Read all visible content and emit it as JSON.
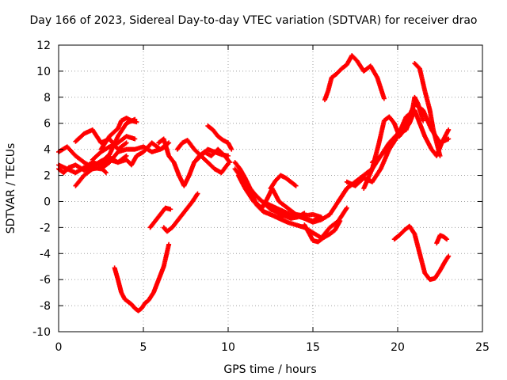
{
  "chart_data": {
    "type": "scatter",
    "title": "Day 166 of 2023, Sidereal Day-to-day VTEC variation (SDTVAR) for receiver drao",
    "xlabel": "GPS time / hours",
    "ylabel": "SDTVAR / TECUs",
    "xlim": [
      0,
      25
    ],
    "ylim": [
      -10,
      12
    ],
    "xticks": [
      0,
      5,
      10,
      15,
      20,
      25
    ],
    "yticks": [
      -10,
      -8,
      -6,
      -4,
      -2,
      0,
      2,
      4,
      6,
      8,
      10,
      12
    ],
    "grid": true,
    "legend": "none",
    "marker": "+",
    "color": "#ff0000",
    "series": [
      {
        "x": [
          0.0,
          0.5,
          1.0,
          1.5,
          2.0,
          2.5,
          3.0,
          3.5,
          4.0,
          4.5,
          5.0,
          5.5,
          6.0,
          6.3
        ],
        "y": [
          3.8,
          4.2,
          3.5,
          3.0,
          2.6,
          2.5,
          3.0,
          3.8,
          4.0,
          4.0,
          4.2,
          3.8,
          4.0,
          4.2
        ]
      },
      {
        "x": [
          0.0,
          0.5,
          1.0,
          1.5,
          2.0,
          2.5,
          3.0,
          3.5,
          4.0
        ],
        "y": [
          2.8,
          2.5,
          2.2,
          2.6,
          3.0,
          2.8,
          3.2,
          3.0,
          3.5
        ]
      },
      {
        "x": [
          0.0,
          0.3,
          0.6,
          1.0,
          1.5,
          2.0,
          2.5,
          3.0,
          3.5,
          4.0,
          4.3,
          4.6,
          5.0,
          5.5,
          6.0,
          6.5
        ],
        "y": [
          2.5,
          2.2,
          2.6,
          2.8,
          2.4,
          2.7,
          3.1,
          3.4,
          3.0,
          3.2,
          2.8,
          3.5,
          3.8,
          4.5,
          4.0,
          4.5
        ]
      },
      {
        "x": [
          1.0,
          1.5,
          2.0,
          2.5,
          2.8
        ],
        "y": [
          1.2,
          2.0,
          2.5,
          2.6,
          2.2
        ]
      },
      {
        "x": [
          1.0,
          1.5,
          2.0,
          2.5,
          3.0,
          3.5,
          4.0
        ],
        "y": [
          4.6,
          5.2,
          5.5,
          4.5,
          4.8,
          4.0,
          4.5
        ]
      },
      {
        "x": [
          2.0,
          2.5,
          3.0,
          3.5,
          4.0,
          4.5
        ],
        "y": [
          3.2,
          3.8,
          4.2,
          4.5,
          5.0,
          4.8
        ]
      },
      {
        "x": [
          2.5,
          3.0,
          3.5,
          3.7,
          4.0,
          4.3,
          4.6
        ],
        "y": [
          4.0,
          5.0,
          5.6,
          6.2,
          6.4,
          6.2,
          6.1
        ]
      },
      {
        "x": [
          2.5,
          3.0,
          3.5,
          4.0,
          4.5
        ],
        "y": [
          3.0,
          3.6,
          5.0,
          6.0,
          6.3
        ]
      },
      {
        "x": [
          3.3,
          3.5,
          3.7,
          3.9,
          4.1,
          4.3,
          4.5,
          4.7,
          4.9,
          5.1,
          5.3,
          5.6,
          5.9,
          6.2,
          6.5
        ],
        "y": [
          -5.1,
          -6.0,
          -7.0,
          -7.5,
          -7.7,
          -7.9,
          -8.2,
          -8.4,
          -8.2,
          -7.8,
          -7.6,
          -7.0,
          -6.0,
          -5.0,
          -3.3
        ]
      },
      {
        "x": [
          5.4,
          5.7,
          6.0,
          6.3,
          6.6
        ],
        "y": [
          -2.0,
          -1.5,
          -1.0,
          -0.5,
          -0.6
        ]
      },
      {
        "x": [
          6.2,
          6.4,
          6.7,
          7.0,
          7.3,
          7.6,
          7.9,
          8.2
        ],
        "y": [
          -2.0,
          -2.3,
          -2.0,
          -1.5,
          -1.0,
          -0.5,
          0.0,
          0.6
        ]
      },
      {
        "x": [
          5.9,
          6.2,
          6.5,
          6.8,
          7.1,
          7.4,
          7.7,
          8.0,
          8.3,
          8.6,
          9.0,
          9.4,
          9.8,
          10.1
        ],
        "y": [
          4.5,
          4.8,
          3.5,
          3.0,
          2.0,
          1.2,
          2.0,
          3.0,
          3.5,
          3.8,
          3.5,
          4.0,
          3.5,
          3.0
        ]
      },
      {
        "x": [
          7.0,
          7.3,
          7.6,
          8.0,
          8.4,
          8.8,
          9.2,
          9.6,
          10.0
        ],
        "y": [
          4.0,
          4.5,
          4.7,
          4.0,
          3.5,
          3.0,
          2.5,
          2.2,
          2.9
        ]
      },
      {
        "x": [
          8.0,
          8.4,
          8.8,
          9.2,
          9.6,
          10.0
        ],
        "y": [
          3.0,
          3.5,
          4.0,
          3.8,
          3.6,
          3.5
        ]
      },
      {
        "x": [
          8.8,
          9.1,
          9.4,
          9.7,
          10.0,
          10.2
        ],
        "y": [
          5.8,
          5.5,
          5.0,
          4.7,
          4.5,
          4.0
        ]
      },
      {
        "x": [
          10.4,
          10.7,
          11.0,
          11.3,
          11.6,
          12.0,
          12.5,
          13.0,
          13.5,
          14.0,
          14.5,
          15.0,
          15.5
        ],
        "y": [
          3.0,
          2.5,
          1.8,
          1.0,
          0.5,
          0.0,
          -0.3,
          -0.6,
          -0.9,
          -1.0,
          -1.1,
          -1.0,
          -1.2
        ]
      },
      {
        "x": [
          10.4,
          10.8,
          11.2,
          11.6,
          12.0,
          12.5,
          13.0,
          13.5,
          14.0,
          14.5,
          15.0,
          15.5,
          16.0,
          16.5,
          17.0,
          17.5,
          18.0,
          18.5
        ],
        "y": [
          2.5,
          1.8,
          1.0,
          0.5,
          0.0,
          -0.6,
          -0.9,
          -1.0,
          -1.1,
          -1.3,
          -1.6,
          -1.4,
          -1.0,
          0.0,
          1.0,
          1.5,
          2.0,
          2.5
        ]
      },
      {
        "x": [
          10.6,
          11.0,
          11.5,
          12.0,
          12.3,
          12.6,
          13.0,
          13.5,
          14.0,
          14.5,
          15.0,
          15.4
        ],
        "y": [
          2.0,
          1.0,
          0.0,
          -0.5,
          0.2,
          1.0,
          0.0,
          -0.5,
          -1.0,
          -1.3,
          -1.5,
          -1.2
        ]
      },
      {
        "x": [
          10.9,
          11.3,
          11.7,
          12.1,
          12.5,
          12.9,
          13.3,
          13.7,
          14.1,
          14.5
        ],
        "y": [
          1.5,
          0.5,
          -0.3,
          -0.8,
          -1.0,
          -1.2,
          -1.1,
          -1.3,
          -1.2,
          -0.9
        ]
      },
      {
        "x": [
          11.2,
          11.6,
          12.0,
          12.5,
          13.0,
          13.5,
          14.0,
          14.5,
          15.0,
          15.5,
          16.0,
          16.5,
          17.0
        ],
        "y": [
          1.0,
          0.0,
          -0.7,
          -1.0,
          -1.3,
          -1.6,
          -1.8,
          -2.0,
          -2.4,
          -2.8,
          -2.0,
          -1.5,
          -0.5
        ]
      },
      {
        "x": [
          12.5,
          12.8,
          13.1,
          13.4,
          13.7,
          14.0
        ],
        "y": [
          1.0,
          1.6,
          2.0,
          1.8,
          1.5,
          1.2
        ]
      },
      {
        "x": [
          14.5,
          14.8,
          15.0,
          15.3,
          15.6,
          16.0,
          16.3,
          16.6
        ],
        "y": [
          -1.8,
          -2.5,
          -3.0,
          -3.1,
          -2.8,
          -2.5,
          -2.2,
          -1.5
        ]
      },
      {
        "x": [
          16.5,
          17.0,
          17.5,
          18.0,
          18.5,
          19.0,
          19.5,
          20.0,
          20.5,
          21.0,
          21.5,
          22.0,
          22.5,
          23.0
        ],
        "y": [
          0.0,
          1.0,
          1.5,
          2.0,
          2.5,
          3.5,
          4.2,
          5.0,
          6.0,
          7.5,
          7.0,
          5.5,
          4.5,
          4.8
        ]
      },
      {
        "x": [
          17.0,
          17.5,
          18.0,
          18.5,
          19.0,
          19.5,
          20.0,
          20.5,
          21.0,
          21.3,
          21.6,
          22.0,
          22.3,
          22.6,
          23.0
        ],
        "y": [
          1.5,
          1.2,
          1.8,
          1.5,
          2.5,
          4.0,
          5.0,
          6.5,
          7.0,
          6.0,
          5.0,
          4.0,
          3.5,
          4.5,
          5.5
        ]
      },
      {
        "x": [
          18.0,
          18.5,
          18.9,
          19.2,
          19.5,
          19.8,
          20.1,
          20.4,
          20.7,
          21.0
        ],
        "y": [
          1.0,
          2.5,
          4.5,
          6.2,
          6.5,
          6.0,
          5.0,
          5.5,
          6.0,
          7.0
        ]
      },
      {
        "x": [
          18.5,
          19.0,
          19.5,
          20.0,
          20.5,
          20.8,
          21.0,
          21.2,
          21.5
        ],
        "y": [
          3.0,
          3.5,
          4.5,
          5.2,
          5.5,
          6.5,
          8.0,
          7.5,
          6.2
        ]
      },
      {
        "x": [
          15.7,
          15.9,
          16.1,
          16.4,
          16.7,
          17.0,
          17.3,
          17.6,
          18.0,
          18.4,
          18.8,
          19.2
        ],
        "y": [
          7.8,
          8.5,
          9.5,
          9.8,
          10.2,
          10.5,
          11.2,
          10.8,
          10.0,
          10.4,
          9.5,
          7.9
        ]
      },
      {
        "x": [
          21.0,
          21.3,
          21.6,
          21.9,
          22.1,
          22.3,
          22.5
        ],
        "y": [
          10.6,
          10.2,
          8.5,
          7.0,
          5.5,
          4.5,
          3.5
        ]
      },
      {
        "x": [
          19.8,
          20.1,
          20.4,
          20.7,
          21.0,
          21.3,
          21.6,
          21.9,
          22.2,
          22.5,
          22.8,
          23.0
        ],
        "y": [
          -2.9,
          -2.6,
          -2.2,
          -1.9,
          -2.5,
          -4.0,
          -5.5,
          -6.0,
          -5.9,
          -5.3,
          -4.6,
          -4.2
        ]
      },
      {
        "x": [
          22.3,
          22.5,
          22.7,
          22.9
        ],
        "y": [
          -3.2,
          -2.6,
          -2.7,
          -2.9
        ]
      }
    ]
  }
}
